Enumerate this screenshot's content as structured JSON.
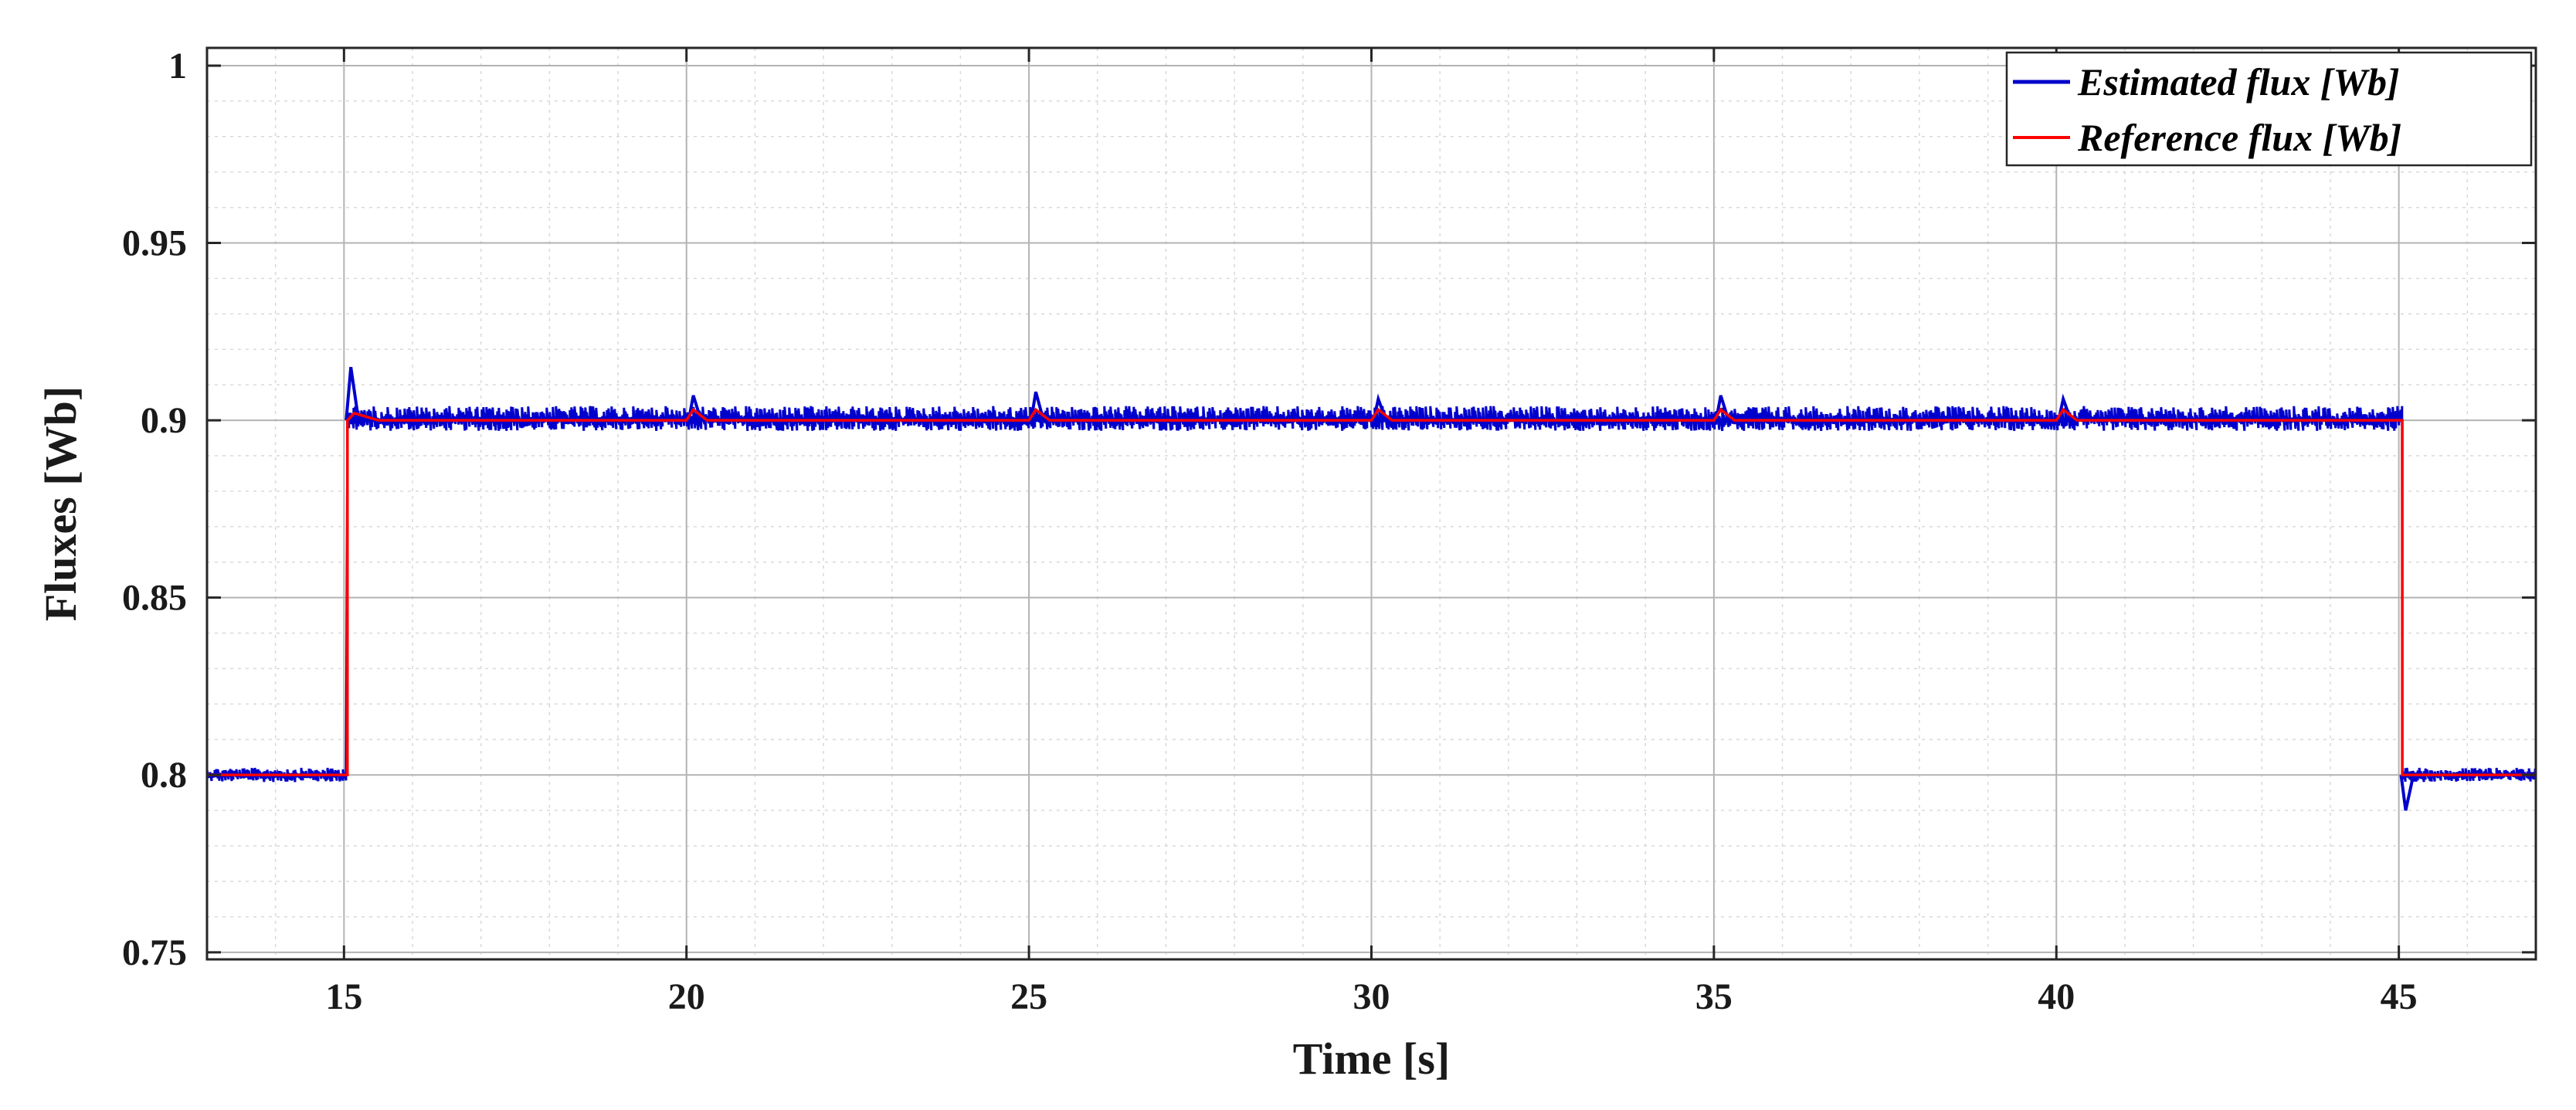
{
  "chart_data": {
    "type": "line",
    "title": "",
    "xlabel": "Time [s]",
    "ylabel": "Fluxes [Wb]",
    "xlim": [
      13,
      47
    ],
    "ylim": [
      0.748,
      1.005
    ],
    "x_ticks": [
      15,
      20,
      25,
      30,
      35,
      40,
      45
    ],
    "y_ticks": [
      0.75,
      0.8,
      0.85,
      0.9,
      0.95,
      1
    ],
    "x_tick_labels": [
      "15",
      "20",
      "25",
      "30",
      "35",
      "40",
      "45"
    ],
    "y_tick_labels": [
      "0.75",
      "0.8",
      "0.85",
      "0.9",
      "0.95",
      "1"
    ],
    "grid": true,
    "minor_grid": true,
    "legend_position": "top-right",
    "series": [
      {
        "name": "Estimated flux [Wb]",
        "color": "#0000cc",
        "style": "noisy-band",
        "segments": [
          {
            "x_start": 13,
            "x_end": 15.05,
            "mean": 0.8,
            "band": [
              0.798,
              0.802
            ]
          },
          {
            "x_start": 15.05,
            "x_end": 45.05,
            "mean": 0.9,
            "band": [
              0.897,
              0.904
            ]
          },
          {
            "x_start": 45.05,
            "x_end": 47,
            "mean": 0.8,
            "band": [
              0.798,
              0.802
            ]
          }
        ],
        "spikes": [
          {
            "x": 15.1,
            "y": 0.915
          },
          {
            "x": 20.1,
            "y": 0.907
          },
          {
            "x": 25.1,
            "y": 0.908
          },
          {
            "x": 30.1,
            "y": 0.906
          },
          {
            "x": 35.1,
            "y": 0.907
          },
          {
            "x": 40.1,
            "y": 0.906
          },
          {
            "x": 45.1,
            "y": 0.79
          }
        ]
      },
      {
        "name": "Reference flux [Wb]",
        "color": "#ff0000",
        "style": "line",
        "x": [
          13,
          15.05,
          15.05,
          15.15,
          15.5,
          20.0,
          20.1,
          20.3,
          25.0,
          25.1,
          25.3,
          30.0,
          30.1,
          30.3,
          35.0,
          35.1,
          35.3,
          40.0,
          40.1,
          40.3,
          45.05,
          45.05,
          47
        ],
        "y": [
          0.8,
          0.8,
          0.9,
          0.902,
          0.9,
          0.9,
          0.903,
          0.9,
          0.9,
          0.903,
          0.9,
          0.9,
          0.903,
          0.9,
          0.9,
          0.903,
          0.9,
          0.9,
          0.903,
          0.9,
          0.9,
          0.8,
          0.8
        ]
      }
    ]
  }
}
